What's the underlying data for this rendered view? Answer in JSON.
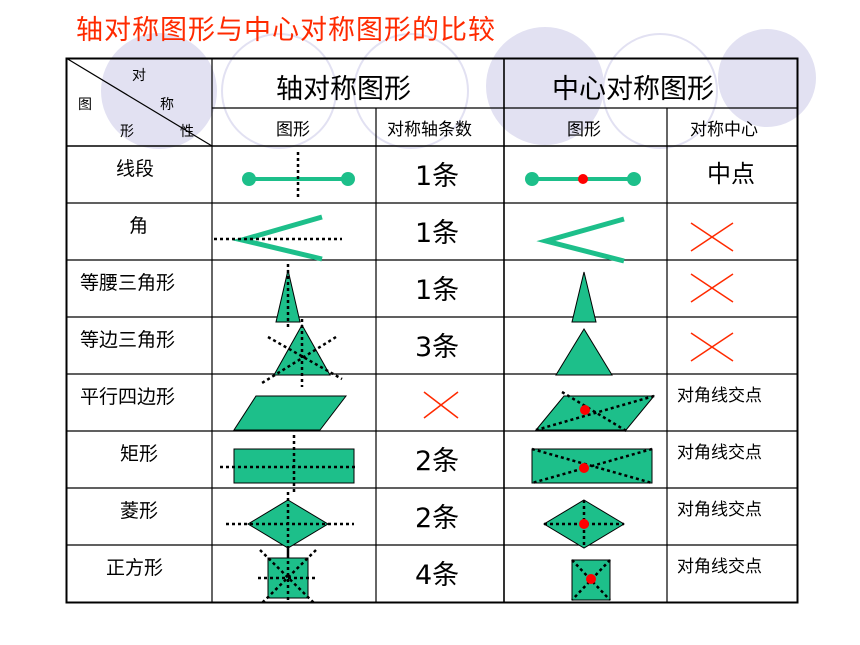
{
  "title": "轴对称图形与中心对称图形的比较",
  "header": {
    "corner_top": "对",
    "corner_left": "图",
    "corner_mid": "称",
    "corner_bottom_left": "形",
    "corner_bottom_right": "性",
    "axial_group": "轴对称图形",
    "central_group": "中心对称图形",
    "col_axial_shape": "图形",
    "col_axis_count": "对称轴条数",
    "col_central_shape": "图形",
    "col_center": "对称中心"
  },
  "rows": [
    {
      "name": "线段",
      "axes": "1条",
      "center": "中点"
    },
    {
      "name": "角",
      "axes": "1条",
      "center": ""
    },
    {
      "name": "等腰三角形",
      "axes": "1条",
      "center": ""
    },
    {
      "name": "等边三角形",
      "axes": "3条",
      "center": ""
    },
    {
      "name": "平行四边形",
      "axes": "",
      "center": "对角线交点"
    },
    {
      "name": "矩形",
      "axes": "2条",
      "center": "对角线交点"
    },
    {
      "name": "菱形",
      "axes": "2条",
      "center": "对角线交点"
    },
    {
      "name": "正方形",
      "axes": "4条",
      "center": "对角线交点"
    }
  ],
  "colors": {
    "title": "#ff2a00",
    "shape_fill": "#1dbf8a",
    "cross_mark": "#ff2a00",
    "center_dot": "#ff0000",
    "decor": "#e2e1f2"
  }
}
